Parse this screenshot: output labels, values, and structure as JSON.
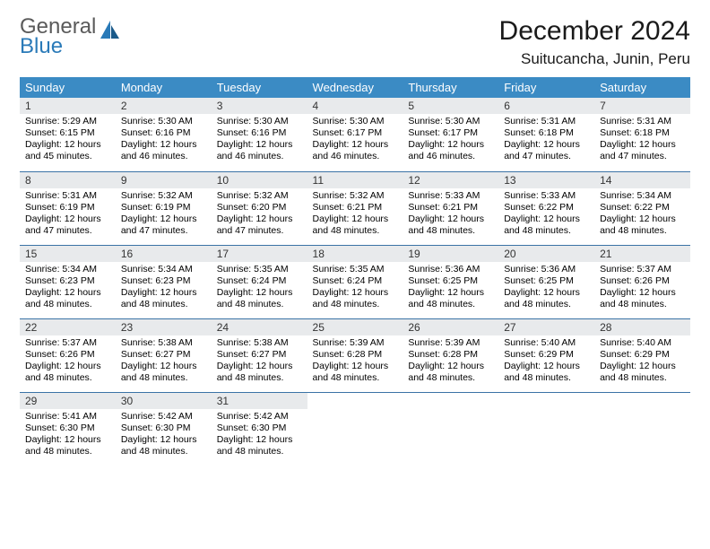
{
  "brand": {
    "general": "General",
    "blue": "Blue"
  },
  "title": "December 2024",
  "location": "Suitucancha, Junin, Peru",
  "weekday_header_bg": "#3b8bc4",
  "border_color": "#3b73a6",
  "daynum_bg": "#e8eaec",
  "weekdays": [
    "Sunday",
    "Monday",
    "Tuesday",
    "Wednesday",
    "Thursday",
    "Friday",
    "Saturday"
  ],
  "labels": {
    "sunrise": "Sunrise:",
    "sunset": "Sunset:",
    "daylight": "Daylight:"
  },
  "weeks": [
    [
      {
        "n": 1,
        "sr": "5:29 AM",
        "ss": "6:15 PM",
        "dl": "12 hours and 45 minutes."
      },
      {
        "n": 2,
        "sr": "5:30 AM",
        "ss": "6:16 PM",
        "dl": "12 hours and 46 minutes."
      },
      {
        "n": 3,
        "sr": "5:30 AM",
        "ss": "6:16 PM",
        "dl": "12 hours and 46 minutes."
      },
      {
        "n": 4,
        "sr": "5:30 AM",
        "ss": "6:17 PM",
        "dl": "12 hours and 46 minutes."
      },
      {
        "n": 5,
        "sr": "5:30 AM",
        "ss": "6:17 PM",
        "dl": "12 hours and 46 minutes."
      },
      {
        "n": 6,
        "sr": "5:31 AM",
        "ss": "6:18 PM",
        "dl": "12 hours and 47 minutes."
      },
      {
        "n": 7,
        "sr": "5:31 AM",
        "ss": "6:18 PM",
        "dl": "12 hours and 47 minutes."
      }
    ],
    [
      {
        "n": 8,
        "sr": "5:31 AM",
        "ss": "6:19 PM",
        "dl": "12 hours and 47 minutes."
      },
      {
        "n": 9,
        "sr": "5:32 AM",
        "ss": "6:19 PM",
        "dl": "12 hours and 47 minutes."
      },
      {
        "n": 10,
        "sr": "5:32 AM",
        "ss": "6:20 PM",
        "dl": "12 hours and 47 minutes."
      },
      {
        "n": 11,
        "sr": "5:32 AM",
        "ss": "6:21 PM",
        "dl": "12 hours and 48 minutes."
      },
      {
        "n": 12,
        "sr": "5:33 AM",
        "ss": "6:21 PM",
        "dl": "12 hours and 48 minutes."
      },
      {
        "n": 13,
        "sr": "5:33 AM",
        "ss": "6:22 PM",
        "dl": "12 hours and 48 minutes."
      },
      {
        "n": 14,
        "sr": "5:34 AM",
        "ss": "6:22 PM",
        "dl": "12 hours and 48 minutes."
      }
    ],
    [
      {
        "n": 15,
        "sr": "5:34 AM",
        "ss": "6:23 PM",
        "dl": "12 hours and 48 minutes."
      },
      {
        "n": 16,
        "sr": "5:34 AM",
        "ss": "6:23 PM",
        "dl": "12 hours and 48 minutes."
      },
      {
        "n": 17,
        "sr": "5:35 AM",
        "ss": "6:24 PM",
        "dl": "12 hours and 48 minutes."
      },
      {
        "n": 18,
        "sr": "5:35 AM",
        "ss": "6:24 PM",
        "dl": "12 hours and 48 minutes."
      },
      {
        "n": 19,
        "sr": "5:36 AM",
        "ss": "6:25 PM",
        "dl": "12 hours and 48 minutes."
      },
      {
        "n": 20,
        "sr": "5:36 AM",
        "ss": "6:25 PM",
        "dl": "12 hours and 48 minutes."
      },
      {
        "n": 21,
        "sr": "5:37 AM",
        "ss": "6:26 PM",
        "dl": "12 hours and 48 minutes."
      }
    ],
    [
      {
        "n": 22,
        "sr": "5:37 AM",
        "ss": "6:26 PM",
        "dl": "12 hours and 48 minutes."
      },
      {
        "n": 23,
        "sr": "5:38 AM",
        "ss": "6:27 PM",
        "dl": "12 hours and 48 minutes."
      },
      {
        "n": 24,
        "sr": "5:38 AM",
        "ss": "6:27 PM",
        "dl": "12 hours and 48 minutes."
      },
      {
        "n": 25,
        "sr": "5:39 AM",
        "ss": "6:28 PM",
        "dl": "12 hours and 48 minutes."
      },
      {
        "n": 26,
        "sr": "5:39 AM",
        "ss": "6:28 PM",
        "dl": "12 hours and 48 minutes."
      },
      {
        "n": 27,
        "sr": "5:40 AM",
        "ss": "6:29 PM",
        "dl": "12 hours and 48 minutes."
      },
      {
        "n": 28,
        "sr": "5:40 AM",
        "ss": "6:29 PM",
        "dl": "12 hours and 48 minutes."
      }
    ],
    [
      {
        "n": 29,
        "sr": "5:41 AM",
        "ss": "6:30 PM",
        "dl": "12 hours and 48 minutes."
      },
      {
        "n": 30,
        "sr": "5:42 AM",
        "ss": "6:30 PM",
        "dl": "12 hours and 48 minutes."
      },
      {
        "n": 31,
        "sr": "5:42 AM",
        "ss": "6:30 PM",
        "dl": "12 hours and 48 minutes."
      },
      null,
      null,
      null,
      null
    ]
  ]
}
